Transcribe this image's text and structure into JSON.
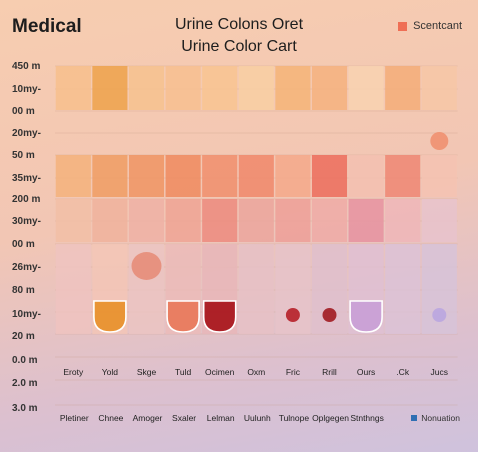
{
  "brand": "Medical",
  "title_line1": "Urine Colons Oret",
  "title_line2": "Urine Color Cart",
  "legend_top": {
    "label": "Scentcant",
    "color": "#ef6f55"
  },
  "legend_bottom": {
    "label": "Nonuation",
    "color": "#2f6fb3"
  },
  "chart_data": {
    "type": "heatmap",
    "title": "Urine Color Cart",
    "y_tick_labels": [
      "450 m",
      "10my-",
      "00 m",
      "20my-",
      "50 m",
      "35my-",
      "200 m",
      "30my-",
      "00 m",
      "26my-",
      "80 m",
      "10my-",
      "20 m",
      "0.0 m",
      "2.0 m",
      "3.0 m"
    ],
    "x_tick_labels_row1": [
      "Eroty",
      "Yold",
      "Skge",
      "Tuld",
      "Ocimen",
      "Oxm",
      "Fric",
      "Rrill",
      "Ours",
      ".Ck",
      "Jucs"
    ],
    "x_tick_labels_row2": [
      "Pletiner",
      "Chnee",
      "Amoger",
      "Sxaler",
      "Lelman",
      "Uulunh",
      "Tulnope",
      "Oplgegen",
      "Stnthngs"
    ],
    "columns": 11,
    "bands": [
      {
        "colors": [
          "#f7c08c",
          "#eda24a",
          "#f6c28e",
          "#f7c08f",
          "#f8c490",
          "#f8cfa2",
          "#f4b477",
          "#f5b27e",
          "#f8d2b0",
          "#f3ad78",
          "#f6c7a6"
        ]
      },
      {
        "colors": [
          "#f3b27b",
          "#ef9c63",
          "#ef9463",
          "#ee8a5e",
          "#f08e6c",
          "#f0876a",
          "#f4a88a",
          "#ec6c5c",
          "#f3c0b0",
          "#ef8673",
          "#f4c2b2"
        ]
      },
      {
        "colors": [
          "#f2bea6",
          "#f0b19c",
          "#efb0a4",
          "#eea394",
          "#ec8a7e",
          "#eba59c",
          "#ed9f98",
          "#efaaa6",
          "#e692a0",
          "#eeb6b8",
          "#e8c3cd"
        ]
      },
      {
        "colors": [
          "#eec3c0",
          "#f3c5b6",
          "#ebc4c2",
          "#ebbbb9",
          "#e7b6b9",
          "#e6c1c6",
          "#e6c3c9",
          "#dfc0cc",
          "#dfc0d2",
          "#dcc2d6",
          "#d7c3d8"
        ]
      }
    ],
    "markers": [
      {
        "col": 1,
        "band": 3,
        "shape": "beaker",
        "color": "#e8902a"
      },
      {
        "col": 2,
        "band": 2,
        "shape": "blob",
        "color": "#e5826a"
      },
      {
        "col": 3,
        "band": 3,
        "shape": "beaker",
        "color": "#e8785a"
      },
      {
        "col": 4,
        "band": 3,
        "shape": "beaker",
        "color": "#a8141a"
      },
      {
        "col": 6,
        "band": 3,
        "shape": "dot",
        "color": "#b3161f"
      },
      {
        "col": 7,
        "band": 3,
        "shape": "dot",
        "color": "#9c1016"
      },
      {
        "col": 8,
        "band": 3,
        "shape": "beaker",
        "color": "#c9a0d6"
      },
      {
        "col": 10,
        "band": 3,
        "shape": "dot",
        "color": "#b9a4e0"
      },
      {
        "col": 10,
        "band": 0,
        "shape": "dot",
        "color": "#f08d6c"
      }
    ]
  }
}
